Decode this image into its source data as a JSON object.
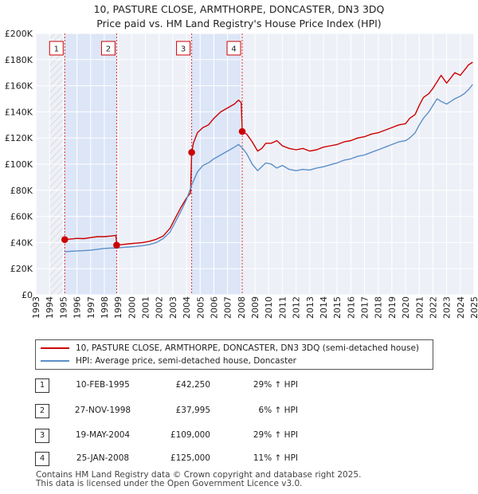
{
  "chart_data": {
    "type": "line",
    "title": "10, PASTURE CLOSE, ARMTHORPE, DONCASTER, DN3 3DQ",
    "subtitle": "Price paid vs. HM Land Registry's House Price Index (HPI)",
    "xlim": [
      1993,
      2025
    ],
    "ylim": [
      0,
      200000
    ],
    "x_ticks": [
      "1993",
      "1994",
      "1995",
      "1996",
      "1997",
      "1998",
      "1999",
      "2000",
      "2001",
      "2002",
      "2003",
      "2004",
      "2005",
      "2006",
      "2007",
      "2008",
      "2009",
      "2010",
      "2011",
      "2012",
      "2013",
      "2014",
      "2015",
      "2016",
      "2017",
      "2018",
      "2019",
      "2020",
      "2021",
      "2022",
      "2023",
      "2024",
      "2025"
    ],
    "y_ticks": [
      {
        "value": 0,
        "label": "£0"
      },
      {
        "value": 20000,
        "label": "£20K"
      },
      {
        "value": 40000,
        "label": "£40K"
      },
      {
        "value": 60000,
        "label": "£60K"
      },
      {
        "value": 80000,
        "label": "£80K"
      },
      {
        "value": 100000,
        "label": "£100K"
      },
      {
        "value": 120000,
        "label": "£120K"
      },
      {
        "value": 140000,
        "label": "£140K"
      },
      {
        "value": 160000,
        "label": "£160K"
      },
      {
        "value": 180000,
        "label": "£180K"
      },
      {
        "value": 200000,
        "label": "£200K"
      }
    ],
    "grid": true,
    "shaded_ranges": [
      [
        1995.11,
        1998.9
      ],
      [
        2004.38,
        2008.07
      ]
    ],
    "series": [
      {
        "name": "10, PASTURE CLOSE, ARMTHORPE, DONCASTER, DN3 3DQ (semi-detached house)",
        "color": "#cc0000",
        "x": [
          1995.11,
          1995.5,
          1996,
          1996.5,
          1997,
          1997.5,
          1998,
          1998.5,
          1998.85,
          1998.9,
          1999.3,
          1999.8,
          2000.3,
          2000.8,
          2001.3,
          2001.8,
          2002.3,
          2002.8,
          2003.2,
          2003.6,
          2004,
          2004.3,
          2004.38,
          2004.5,
          2004.8,
          2005.2,
          2005.6,
          2006,
          2006.5,
          2007,
          2007.5,
          2007.8,
          2008.0,
          2008.07,
          2008.4,
          2008.8,
          2009.2,
          2009.5,
          2009.8,
          2010.2,
          2010.6,
          2011,
          2011.5,
          2012,
          2012.5,
          2013,
          2013.5,
          2014,
          2014.5,
          2015,
          2015.5,
          2016,
          2016.5,
          2017,
          2017.5,
          2018,
          2018.5,
          2019,
          2019.5,
          2020,
          2020.3,
          2020.7,
          2021,
          2021.3,
          2021.7,
          2022,
          2022.3,
          2022.6,
          2023,
          2023.3,
          2023.6,
          2024,
          2024.3,
          2024.6,
          2024.9
        ],
        "y": [
          42250,
          42600,
          43200,
          43000,
          43800,
          44500,
          44500,
          45000,
          45500,
          37995,
          38500,
          39000,
          39500,
          40000,
          41000,
          42500,
          45000,
          51000,
          59000,
          67000,
          74000,
          78000,
          109000,
          116000,
          124000,
          128000,
          130000,
          135000,
          140000,
          143000,
          146000,
          149000,
          147000,
          125000,
          123000,
          117000,
          110000,
          112000,
          116000,
          116000,
          118000,
          114000,
          112000,
          111000,
          112000,
          110000,
          111000,
          113000,
          114000,
          115000,
          117000,
          118000,
          120000,
          121000,
          123000,
          124000,
          126000,
          128000,
          130000,
          131000,
          135000,
          138000,
          145000,
          151000,
          154000,
          158000,
          163000,
          168000,
          162000,
          166000,
          170000,
          168000,
          172000,
          176000,
          178000
        ]
      },
      {
        "name": "HPI: Average price, semi-detached house, Doncaster",
        "color": "#5b8fc9",
        "x": [
          1995.11,
          1995.5,
          1996,
          1996.5,
          1997,
          1997.5,
          1998,
          1998.5,
          1998.9,
          1999.3,
          1999.8,
          2000.3,
          2000.8,
          2001.3,
          2001.8,
          2002.3,
          2002.8,
          2003.2,
          2003.6,
          2004,
          2004.38,
          2004.8,
          2005.2,
          2005.6,
          2006,
          2006.5,
          2007,
          2007.5,
          2007.8,
          2008.07,
          2008.4,
          2008.8,
          2009.2,
          2009.5,
          2009.8,
          2010.2,
          2010.6,
          2011,
          2011.5,
          2012,
          2012.5,
          2013,
          2013.5,
          2014,
          2014.5,
          2015,
          2015.5,
          2016,
          2016.5,
          2017,
          2017.5,
          2018,
          2018.5,
          2019,
          2019.5,
          2020,
          2020.3,
          2020.7,
          2021,
          2021.3,
          2021.7,
          2022,
          2022.3,
          2022.6,
          2023,
          2023.3,
          2023.6,
          2024,
          2024.3,
          2024.6,
          2024.9
        ],
        "y": [
          33000,
          33300,
          33600,
          33800,
          34200,
          34800,
          35500,
          35800,
          35800,
          36200,
          36600,
          37000,
          37600,
          38500,
          40000,
          43000,
          48000,
          56000,
          64000,
          73000,
          84000,
          94000,
          99000,
          101000,
          104000,
          107000,
          110000,
          113000,
          115000,
          112500,
          108000,
          100000,
          95000,
          98000,
          101000,
          100000,
          97000,
          99000,
          96000,
          95000,
          96000,
          95500,
          97000,
          98000,
          99500,
          101000,
          103000,
          104000,
          106000,
          107000,
          109000,
          111000,
          113000,
          115000,
          117000,
          118000,
          120000,
          124000,
          130000,
          135000,
          140000,
          145000,
          150000,
          148000,
          146000,
          148000,
          150000,
          152000,
          154000,
          157000,
          161000
        ]
      }
    ],
    "sales": [
      {
        "label": "1",
        "x": 1995.11,
        "y": 42250,
        "date": "10-FEB-1995",
        "price": "£42,250",
        "hpi": "29% ↑ HPI"
      },
      {
        "label": "2",
        "x": 1998.9,
        "y": 37995,
        "date": "27-NOV-1998",
        "price": "£37,995",
        "hpi": "6% ↑ HPI"
      },
      {
        "label": "3",
        "x": 2004.38,
        "y": 109000,
        "date": "19-MAY-2004",
        "price": "£109,000",
        "hpi": "29% ↑ HPI"
      },
      {
        "label": "4",
        "x": 2008.07,
        "y": 125000,
        "date": "25-JAN-2008",
        "price": "£125,000",
        "hpi": "11% ↑ HPI"
      }
    ]
  },
  "legend": {
    "property_label": "10, PASTURE CLOSE, ARMTHORPE, DONCASTER, DN3 3DQ (semi-detached house)",
    "hpi_label": "HPI: Average price, semi-detached house, Doncaster",
    "property_color": "#cc0000",
    "hpi_color": "#5b8fc9"
  },
  "footer": {
    "line1": "Contains HM Land Registry data © Crown copyright and database right 2025.",
    "line2": "This data is licensed under the Open Government Licence v3.0."
  }
}
